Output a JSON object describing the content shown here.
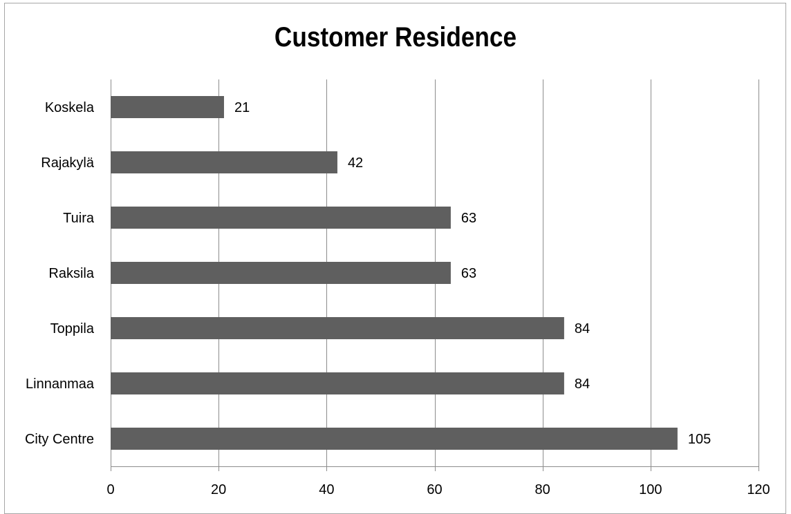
{
  "chart_data": {
    "type": "bar",
    "orientation": "horizontal",
    "title": "Customer Residence",
    "categories": [
      "Koskela",
      "Rajakylä",
      "Tuira",
      "Raksila",
      "Toppila",
      "Linnanmaa",
      "City Centre"
    ],
    "values": [
      21,
      42,
      63,
      63,
      84,
      84,
      105
    ],
    "data_labels": [
      "21",
      "42",
      "63",
      "63",
      "84",
      "84",
      "105"
    ],
    "xlim": [
      0,
      120
    ],
    "x_ticks": [
      0,
      20,
      40,
      60,
      80,
      100,
      120
    ],
    "x_tick_labels": [
      "0",
      "20",
      "40",
      "60",
      "80",
      "100",
      "120"
    ],
    "grid": "vertical",
    "legend": "none",
    "colors": {
      "bar": "#5f5f5f",
      "gridline": "#8c8c8c",
      "border": "#a6a6a6"
    }
  }
}
